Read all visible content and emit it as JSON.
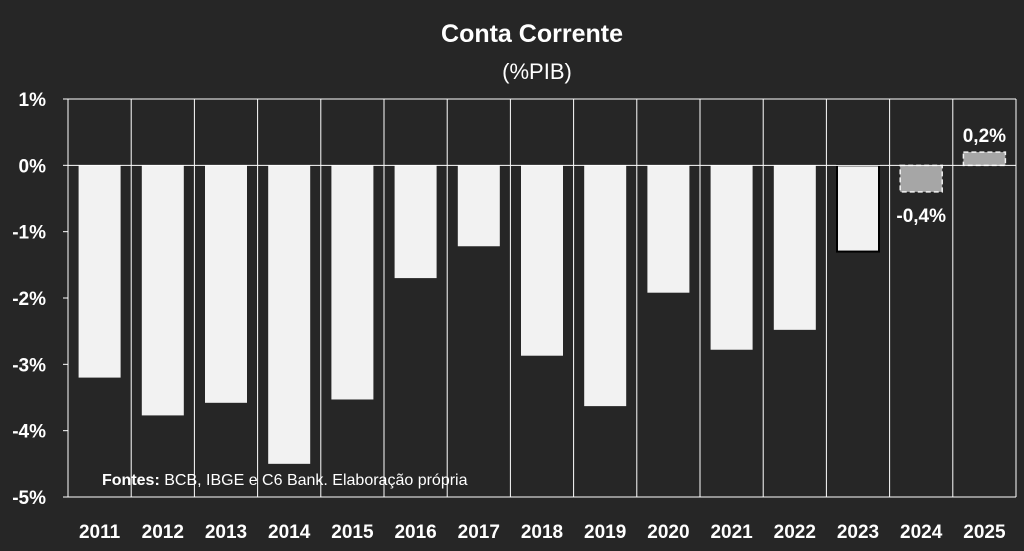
{
  "chart_data": {
    "type": "bar",
    "title": "Conta Corrente",
    "subtitle": "(%PIB)",
    "categories": [
      "2011",
      "2012",
      "2013",
      "2014",
      "2015",
      "2016",
      "2017",
      "2018",
      "2019",
      "2020",
      "2021",
      "2022",
      "2023",
      "2024",
      "2025"
    ],
    "values": [
      -3.2,
      -3.77,
      -3.58,
      -4.5,
      -3.53,
      -1.7,
      -1.22,
      -2.87,
      -3.63,
      -1.92,
      -2.78,
      -2.48,
      -1.3,
      -0.4,
      0.2
    ],
    "bar_styles": [
      "solid",
      "solid",
      "solid",
      "solid",
      "solid",
      "solid",
      "solid",
      "solid",
      "solid",
      "solid",
      "solid",
      "solid",
      "outlined",
      "projection",
      "projection"
    ],
    "data_labels": [
      {
        "index": 13,
        "text": "-0,4%"
      },
      {
        "index": 14,
        "text": "0,2%"
      }
    ],
    "y_ticks": [
      "1%",
      "0%",
      "-1%",
      "-2%",
      "-3%",
      "-4%",
      "-5%"
    ],
    "y_tick_values": [
      1,
      0,
      -1,
      -2,
      -3,
      -4,
      -5
    ],
    "ylim": [
      -5,
      1
    ],
    "xlabel": "",
    "ylabel": "",
    "grid": "vertical",
    "legend": "none",
    "colors": {
      "background": "#262626",
      "bar": "#f2f2f2",
      "projection_bar": "#a6a6a6",
      "grid": "#ffffff",
      "text": "#ffffff"
    }
  },
  "source_note": {
    "bold": "Fontes:",
    "text": " BCB, IBGE e C6 Bank. Elaboração própria"
  }
}
